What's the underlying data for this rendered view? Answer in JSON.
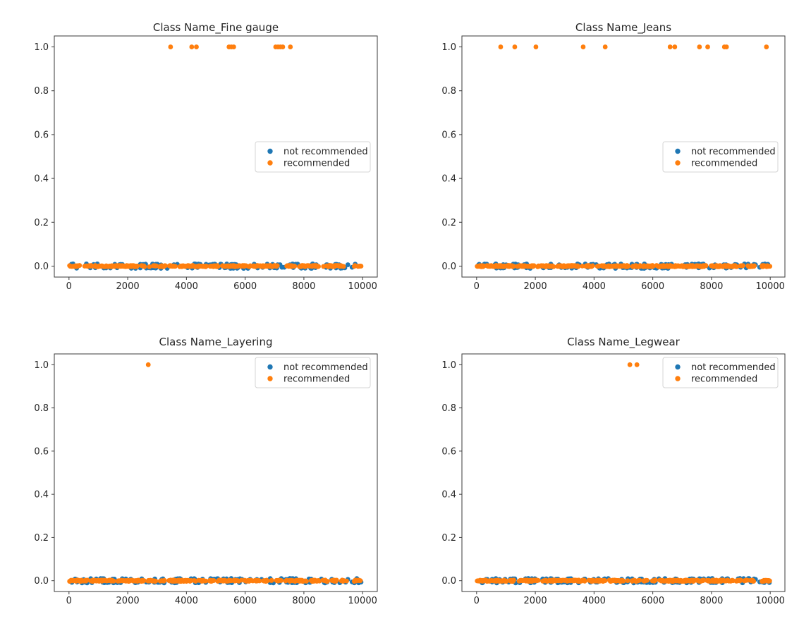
{
  "figure": {
    "background": "#ffffff"
  },
  "colors": {
    "not_recommended": "#1f77b4",
    "recommended": "#ff7f0e"
  },
  "legend": {
    "items": [
      {
        "label": "not recommended",
        "color_key": "not_recommended"
      },
      {
        "label": "recommended",
        "color_key": "recommended"
      }
    ]
  },
  "axes": {
    "x_range": [
      0,
      10000
    ],
    "y_range": [
      0,
      1
    ],
    "x_tick_values": [
      0,
      2000,
      4000,
      6000,
      8000,
      10000
    ],
    "x_tick_labels": [
      "0",
      "2000",
      "4000",
      "6000",
      "8000",
      "10000"
    ],
    "y_tick_values": [
      0.0,
      0.2,
      0.4,
      0.6,
      0.8,
      1.0
    ],
    "y_tick_labels": [
      "0.0",
      "0.2",
      "0.4",
      "0.6",
      "0.8",
      "1.0"
    ],
    "grid": false
  },
  "chart_data": [
    {
      "type": "scatter",
      "title": "Class Name_Fine gauge",
      "legend_position": "center right",
      "recommended_y1_x": [
        3460,
        4180,
        4340,
        5450,
        5530,
        5610,
        7040,
        7120,
        7200,
        7280,
        7540
      ],
      "y0_band": {
        "y": 0,
        "x_min": 20,
        "x_max": 9990,
        "density": "continuous overlapping points, orange drawn over blue",
        "gaps": [
          [
            7130,
            7400
          ],
          [
            9460,
            9700
          ]
        ],
        "blue_fleck_count": 130,
        "seed": 7
      },
      "visible_blue_y0_x": [
        7180,
        7260,
        9570
      ]
    },
    {
      "type": "scatter",
      "title": "Class Name_Jeans",
      "legend_position": "center right",
      "recommended_y1_x": [
        820,
        1300,
        2020,
        3630,
        4380,
        6590,
        6750,
        7590,
        7870,
        8440,
        8510,
        9870
      ],
      "y0_band": {
        "y": 0,
        "x_min": 20,
        "x_max": 9990,
        "density": "continuous overlapping points, orange drawn over blue",
        "gaps": [
          [
            8880,
            8970
          ],
          [
            9460,
            9700
          ]
        ],
        "blue_fleck_count": 130,
        "seed": 11
      },
      "visible_blue_y0_x": [
        8920,
        9570
      ]
    },
    {
      "type": "scatter",
      "title": "Class Name_Layering",
      "legend_position": "upper right",
      "recommended_y1_x": [
        2700
      ],
      "y0_band": {
        "y": 0,
        "x_min": 20,
        "x_max": 9990,
        "density": "continuous overlapping points, orange drawn over blue",
        "gaps": [
          [
            9460,
            9700
          ]
        ],
        "blue_fleck_count": 130,
        "seed": 13
      },
      "visible_blue_y0_x": [
        9570
      ]
    },
    {
      "type": "scatter",
      "title": "Class Name_Legwear",
      "legend_position": "upper right",
      "recommended_y1_x": [
        5220,
        5460
      ],
      "y0_band": {
        "y": 0,
        "x_min": 20,
        "x_max": 9990,
        "density": "continuous overlapping points, orange drawn over blue",
        "gaps": [
          [
            9460,
            9700
          ]
        ],
        "blue_fleck_count": 130,
        "seed": 17
      },
      "visible_blue_y0_x": [
        9570
      ]
    }
  ]
}
